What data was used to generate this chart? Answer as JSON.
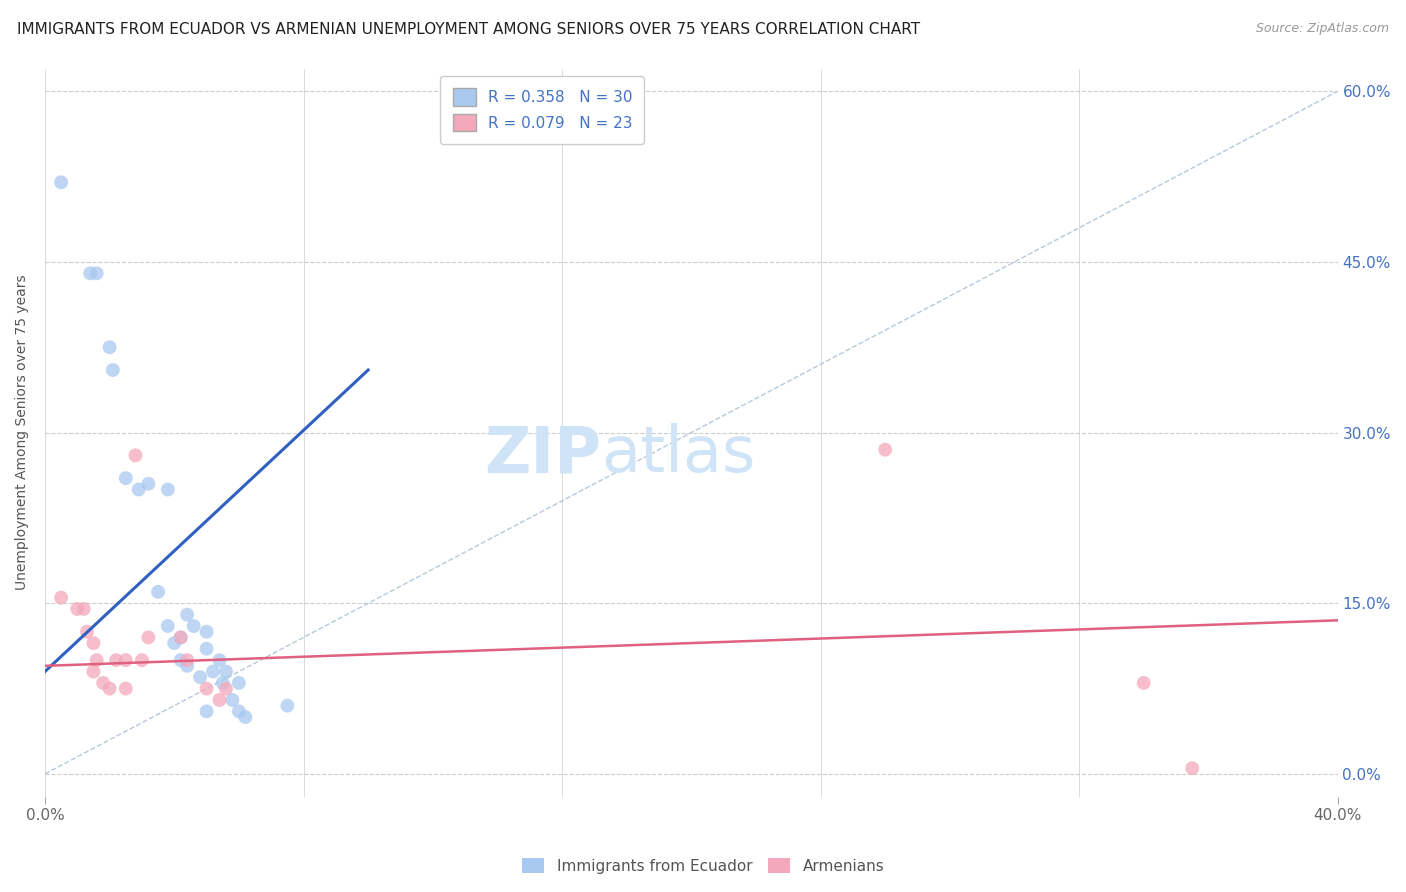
{
  "title": "IMMIGRANTS FROM ECUADOR VS ARMENIAN UNEMPLOYMENT AMONG SENIORS OVER 75 YEARS CORRELATION CHART",
  "source": "Source: ZipAtlas.com",
  "ylabel": "Unemployment Among Seniors over 75 years",
  "ytick_labels": [
    "0.0%",
    "15.0%",
    "30.0%",
    "45.0%",
    "60.0%"
  ],
  "ytick_values": [
    0.0,
    0.15,
    0.3,
    0.45,
    0.6
  ],
  "xtick_values": [
    0.0,
    0.4
  ],
  "xtick_labels": [
    "0.0%",
    "40.0%"
  ],
  "xlim": [
    0.0,
    0.4
  ],
  "ylim": [
    -0.02,
    0.62
  ],
  "watermark_zip": "ZIP",
  "watermark_atlas": "atlas",
  "legend_entries": [
    {
      "label": "R = 0.358   N = 30",
      "color": "#aec6f0"
    },
    {
      "label": "R = 0.079   N = 23",
      "color": "#f4a8b8"
    }
  ],
  "ecuador_scatter": [
    [
      0.005,
      0.52
    ],
    [
      0.014,
      0.44
    ],
    [
      0.016,
      0.44
    ],
    [
      0.02,
      0.375
    ],
    [
      0.021,
      0.355
    ],
    [
      0.025,
      0.26
    ],
    [
      0.029,
      0.25
    ],
    [
      0.032,
      0.255
    ],
    [
      0.035,
      0.16
    ],
    [
      0.038,
      0.25
    ],
    [
      0.038,
      0.13
    ],
    [
      0.04,
      0.115
    ],
    [
      0.042,
      0.12
    ],
    [
      0.042,
      0.1
    ],
    [
      0.044,
      0.14
    ],
    [
      0.044,
      0.095
    ],
    [
      0.046,
      0.13
    ],
    [
      0.048,
      0.085
    ],
    [
      0.05,
      0.125
    ],
    [
      0.05,
      0.11
    ],
    [
      0.05,
      0.055
    ],
    [
      0.052,
      0.09
    ],
    [
      0.054,
      0.1
    ],
    [
      0.055,
      0.08
    ],
    [
      0.056,
      0.09
    ],
    [
      0.058,
      0.065
    ],
    [
      0.06,
      0.08
    ],
    [
      0.06,
      0.055
    ],
    [
      0.062,
      0.05
    ],
    [
      0.075,
      0.06
    ]
  ],
  "armenian_scatter": [
    [
      0.005,
      0.155
    ],
    [
      0.01,
      0.145
    ],
    [
      0.012,
      0.145
    ],
    [
      0.013,
      0.125
    ],
    [
      0.015,
      0.115
    ],
    [
      0.015,
      0.09
    ],
    [
      0.016,
      0.1
    ],
    [
      0.018,
      0.08
    ],
    [
      0.02,
      0.075
    ],
    [
      0.022,
      0.1
    ],
    [
      0.025,
      0.1
    ],
    [
      0.025,
      0.075
    ],
    [
      0.028,
      0.28
    ],
    [
      0.03,
      0.1
    ],
    [
      0.032,
      0.12
    ],
    [
      0.042,
      0.12
    ],
    [
      0.044,
      0.1
    ],
    [
      0.05,
      0.075
    ],
    [
      0.054,
      0.065
    ],
    [
      0.056,
      0.075
    ],
    [
      0.26,
      0.285
    ],
    [
      0.34,
      0.08
    ],
    [
      0.355,
      0.005
    ]
  ],
  "ecuador_line_x": [
    0.0,
    0.1
  ],
  "ecuador_line_y": [
    0.09,
    0.355
  ],
  "armenian_line_x": [
    0.0,
    0.4
  ],
  "armenian_line_y": [
    0.095,
    0.135
  ],
  "diag_line_x": [
    0.0,
    0.4
  ],
  "diag_line_y": [
    0.0,
    0.6
  ],
  "ecuador_color": "#a8c8f0",
  "armenian_color": "#f4a8bc",
  "ecuador_line_color": "#3060c0",
  "armenian_line_color": "#e06080",
  "diag_line_color": "#b8c8d8",
  "marker_size": 100,
  "background_color": "#ffffff",
  "title_fontsize": 11,
  "axis_label_fontsize": 10,
  "tick_fontsize": 11,
  "watermark_fontsize_zip": 46,
  "watermark_fontsize_atlas": 46,
  "watermark_color": "#d0e4f7",
  "source_fontsize": 9
}
